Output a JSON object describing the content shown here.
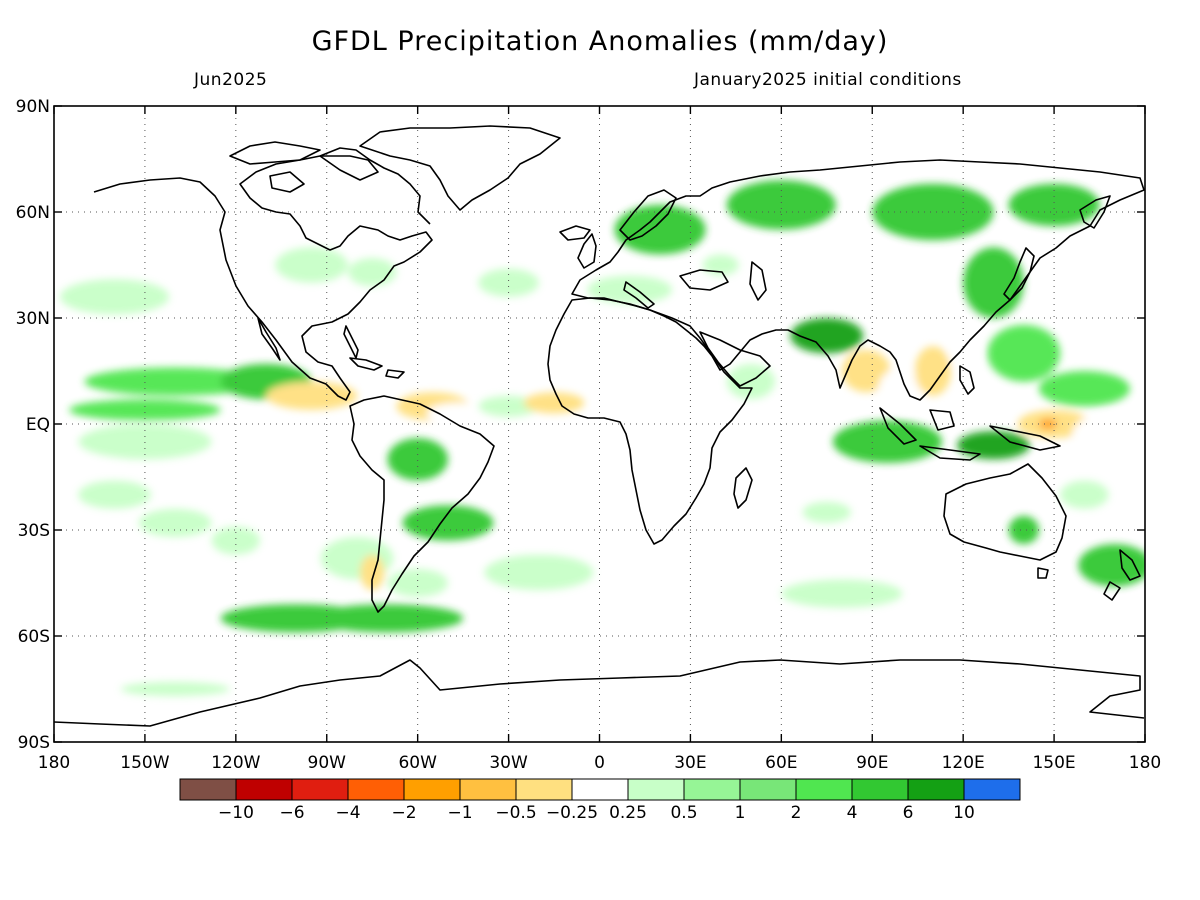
{
  "title": "GFDL Precipitation Anomalies (mm/day)",
  "subtitle_left": "Jun2025",
  "subtitle_right": "January2025 initial conditions",
  "map": {
    "lon_range": [
      -180,
      180
    ],
    "lat_range": [
      -90,
      90
    ],
    "graticule": "dotted",
    "x_ticks": [
      {
        "lon": -180,
        "label": "180"
      },
      {
        "lon": -150,
        "label": "150W"
      },
      {
        "lon": -120,
        "label": "120W"
      },
      {
        "lon": -90,
        "label": "90W"
      },
      {
        "lon": -60,
        "label": "60W"
      },
      {
        "lon": -30,
        "label": "30W"
      },
      {
        "lon": 0,
        "label": "0"
      },
      {
        "lon": 30,
        "label": "30E"
      },
      {
        "lon": 60,
        "label": "60E"
      },
      {
        "lon": 90,
        "label": "90E"
      },
      {
        "lon": 120,
        "label": "120E"
      },
      {
        "lon": 150,
        "label": "150E"
      },
      {
        "lon": 180,
        "label": "180"
      }
    ],
    "y_ticks": [
      {
        "lat": 90,
        "label": "90N"
      },
      {
        "lat": 60,
        "label": "60N"
      },
      {
        "lat": 30,
        "label": "30N"
      },
      {
        "lat": 0,
        "label": "EQ"
      },
      {
        "lat": -30,
        "label": "30S"
      },
      {
        "lat": -60,
        "label": "60S"
      },
      {
        "lat": -90,
        "label": "90S"
      }
    ],
    "anomaly_regions": [
      {
        "lon": -168,
        "lat": -6,
        "rlon": 18,
        "rlat": 5,
        "level": 7
      },
      {
        "lon": -150,
        "lat": -5,
        "rlon": 22,
        "rlat": 5,
        "level": 8
      },
      {
        "lon": -150,
        "lat": 4,
        "rlon": 25,
        "rlat": 3,
        "level": 11
      },
      {
        "lon": -140,
        "lat": 12,
        "rlon": 30,
        "rlat": 4,
        "level": 11
      },
      {
        "lon": -110,
        "lat": 12,
        "rlon": 15,
        "rlat": 5,
        "level": 12
      },
      {
        "lon": -160,
        "lat": 36,
        "rlon": 18,
        "rlat": 5,
        "level": 8
      },
      {
        "lon": -160,
        "lat": -20,
        "rlon": 12,
        "rlat": 4,
        "level": 8
      },
      {
        "lon": -140,
        "lat": -28,
        "rlon": 12,
        "rlat": 4,
        "level": 8
      },
      {
        "lon": -120,
        "lat": -33,
        "rlon": 8,
        "rlat": 4,
        "level": 8
      },
      {
        "lon": -95,
        "lat": 45,
        "rlon": 12,
        "rlat": 5,
        "level": 8
      },
      {
        "lon": -75,
        "lat": 43,
        "rlon": 8,
        "rlat": 4,
        "level": 8
      },
      {
        "lon": -80,
        "lat": 20,
        "rlon": 10,
        "rlat": 6,
        "level": 7
      },
      {
        "lon": -95,
        "lat": 8,
        "rlon": 15,
        "rlat": 4,
        "level": 6
      },
      {
        "lon": -55,
        "lat": 5,
        "rlon": 12,
        "rlat": 4,
        "level": 6
      },
      {
        "lon": -47,
        "lat": 3,
        "rlon": 10,
        "rlat": 3,
        "level": 7
      },
      {
        "lon": -30,
        "lat": 5,
        "rlon": 10,
        "rlat": 3,
        "level": 8
      },
      {
        "lon": -15,
        "lat": 6,
        "rlon": 10,
        "rlat": 3,
        "level": 6
      },
      {
        "lon": -60,
        "lat": -10,
        "rlon": 10,
        "rlat": 6,
        "level": 12
      },
      {
        "lon": -80,
        "lat": -38,
        "rlon": 12,
        "rlat": 6,
        "level": 8
      },
      {
        "lon": -75,
        "lat": -42,
        "rlon": 4,
        "rlat": 5,
        "level": 6
      },
      {
        "lon": -50,
        "lat": -28,
        "rlon": 15,
        "rlat": 5,
        "level": 12
      },
      {
        "lon": -60,
        "lat": -45,
        "rlon": 10,
        "rlat": 4,
        "level": 8
      },
      {
        "lon": -20,
        "lat": -42,
        "rlon": 18,
        "rlat": 5,
        "level": 8
      },
      {
        "lon": -30,
        "lat": 40,
        "rlon": 10,
        "rlat": 4,
        "level": 8
      },
      {
        "lon": -70,
        "lat": -55,
        "rlon": 25,
        "rlat": 4,
        "level": 12
      },
      {
        "lon": -100,
        "lat": -55,
        "rlon": 25,
        "rlat": 4,
        "level": 12
      },
      {
        "lon": -140,
        "lat": -75,
        "rlon": 18,
        "rlat": 2,
        "level": 8
      },
      {
        "lon": 10,
        "lat": 38,
        "rlon": 14,
        "rlat": 4,
        "level": 8
      },
      {
        "lon": 40,
        "lat": 45,
        "rlon": 6,
        "rlat": 3,
        "level": 8
      },
      {
        "lon": 20,
        "lat": 55,
        "rlon": 15,
        "rlat": 7,
        "level": 12
      },
      {
        "lon": 60,
        "lat": 62,
        "rlon": 18,
        "rlat": 7,
        "level": 12
      },
      {
        "lon": 110,
        "lat": 60,
        "rlon": 20,
        "rlat": 8,
        "level": 12
      },
      {
        "lon": 150,
        "lat": 62,
        "rlon": 15,
        "rlat": 6,
        "level": 12
      },
      {
        "lon": 75,
        "lat": 25,
        "rlon": 12,
        "rlat": 5,
        "level": 13
      },
      {
        "lon": 60,
        "lat": 4,
        "rlon": 14,
        "rlat": 6,
        "level": 7
      },
      {
        "lon": 50,
        "lat": 12,
        "rlon": 8,
        "rlat": 5,
        "level": 8
      },
      {
        "lon": 75,
        "lat": -25,
        "rlon": 8,
        "rlat": 3,
        "level": 8
      },
      {
        "lon": 80,
        "lat": -48,
        "rlon": 20,
        "rlat": 4,
        "level": 8
      },
      {
        "lon": 95,
        "lat": -5,
        "rlon": 18,
        "rlat": 6,
        "level": 12
      },
      {
        "lon": 88,
        "lat": 15,
        "rlon": 8,
        "rlat": 6,
        "level": 6
      },
      {
        "lon": 100,
        "lat": 10,
        "rlon": 8,
        "rlat": 6,
        "level": 7
      },
      {
        "lon": 110,
        "lat": 15,
        "rlon": 6,
        "rlat": 7,
        "level": 6
      },
      {
        "lon": 120,
        "lat": 20,
        "rlon": 5,
        "rlat": 5,
        "level": 7
      },
      {
        "lon": 150,
        "lat": 0,
        "rlon": 12,
        "rlat": 4,
        "level": 6
      },
      {
        "lon": 148,
        "lat": 0,
        "rlon": 3,
        "rlat": 1.5,
        "level": 4
      },
      {
        "lon": 168,
        "lat": -3,
        "rlon": 12,
        "rlat": 6,
        "level": 7
      },
      {
        "lon": 130,
        "lat": -6,
        "rlon": 12,
        "rlat": 4,
        "level": 13
      },
      {
        "lon": 140,
        "lat": 20,
        "rlon": 12,
        "rlat": 8,
        "level": 11
      },
      {
        "lon": 130,
        "lat": 40,
        "rlon": 10,
        "rlat": 10,
        "level": 12
      },
      {
        "lon": 160,
        "lat": 10,
        "rlon": 15,
        "rlat": 5,
        "level": 11
      },
      {
        "lon": 170,
        "lat": -40,
        "rlon": 12,
        "rlat": 6,
        "level": 12
      },
      {
        "lon": 140,
        "lat": -30,
        "rlon": 5,
        "rlat": 4,
        "level": 12
      },
      {
        "lon": 160,
        "lat": -20,
        "rlon": 8,
        "rlat": 4,
        "level": 8
      }
    ]
  },
  "colorbar": {
    "colors": [
      "#7f4f45",
      "#bf0000",
      "#e01e10",
      "#ff5f05",
      "#ff9f00",
      "#ffc040",
      "#ffe080",
      "#ffffff",
      "#c8ffc8",
      "#96f596",
      "#78e678",
      "#50e650",
      "#32c832",
      "#14a014",
      "#1e6eeb"
    ],
    "labels": [
      "−10",
      "−6",
      "−4",
      "−2",
      "−1",
      "−0.5",
      "−0.25",
      "0.25",
      "0.5",
      "1",
      "2",
      "4",
      "6",
      "10"
    ]
  }
}
